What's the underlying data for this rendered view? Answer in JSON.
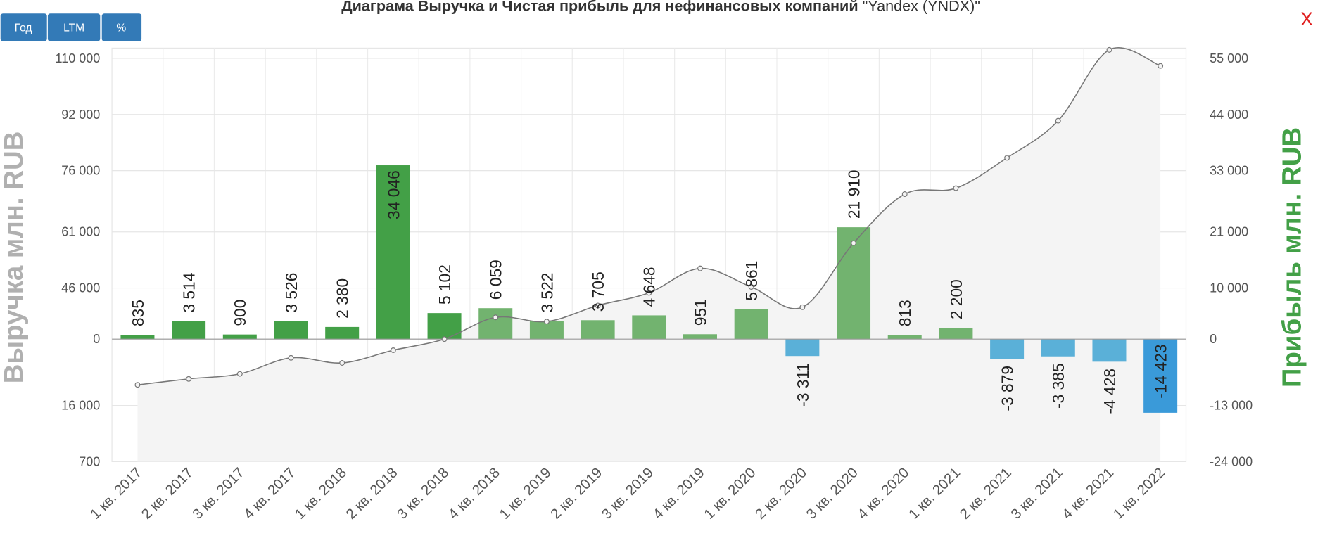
{
  "buttons": [
    "Год",
    "LTM",
    "%"
  ],
  "close": "X",
  "chart_data": {
    "type": "bar",
    "title": "Диаграма Выручка и Чистая прибыль для нефинансовых компаний",
    "title_company": "\"Yandex (YNDX)\"",
    "ylabel": "Выручка млн. RUB",
    "y2label": "Прибыль млн. RUB",
    "categories": [
      "1 кв. 2017",
      "2 кв. 2017",
      "3 кв. 2017",
      "4 кв. 2017",
      "1 кв. 2018",
      "2 кв. 2018",
      "3 кв. 2018",
      "4 кв. 2018",
      "1 кв. 2019",
      "2 кв. 2019",
      "3 кв. 2019",
      "4 кв. 2019",
      "1 кв. 2020",
      "2 кв. 2020",
      "3 кв. 2020",
      "4 кв. 2020",
      "1 кв. 2021",
      "2 кв. 2021",
      "3 кв. 2021",
      "4 кв. 2021",
      "1 кв. 2022"
    ],
    "yticks": [
      {
        "value": 110000,
        "label": "110 000"
      },
      {
        "value": 92000,
        "label": "92 000"
      },
      {
        "value": 76000,
        "label": "76 000"
      },
      {
        "value": 61000,
        "label": "61 000"
      },
      {
        "value": 46000,
        "label": "46 000"
      },
      0,
      {
        "value": 16000,
        "label": "16 000"
      },
      700
    ],
    "y2lim": [
      -24000,
      57000
    ],
    "y2ticks": [
      {
        "value": 55000,
        "label": "55 000"
      },
      {
        "value": 44000,
        "label": "44 000"
      },
      {
        "value": 33000,
        "label": "33 000"
      },
      {
        "value": 21000,
        "label": "21 000"
      },
      {
        "value": 10000,
        "label": "10 000"
      },
      0,
      {
        "value": -13000,
        "label": "-13 000"
      },
      {
        "value": -24000,
        "label": "-24 000"
      }
    ],
    "grid": true,
    "series": [
      {
        "type": "bar",
        "axis": "y2",
        "values": [
          835,
          3514,
          900,
          3526,
          2380,
          34046,
          5102,
          6059,
          3522,
          3705,
          4648,
          951,
          5861,
          -3311,
          21910,
          813,
          2200,
          -3879,
          -3385,
          -4428,
          -14423
        ],
        "value_labels": [
          "835",
          "3 514",
          "900",
          "3 526",
          "2 380",
          "34 046",
          "5 102",
          "6 059",
          "3 522",
          "3 705",
          "4 648",
          "951",
          "5 861",
          "-3 311",
          "21 910",
          "813",
          "2 200",
          "-3 879",
          "-3 385",
          "-4 428",
          "-14 423"
        ],
        "colors": [
          "#43a047",
          "#43a047",
          "#43a047",
          "#43a047",
          "#43a047",
          "#43a047",
          "#43a047",
          "#72b36f",
          "#72b36f",
          "#72b36f",
          "#72b36f",
          "#72b36f",
          "#72b36f",
          "#5ab0d8",
          "#72b36f",
          "#72b36f",
          "#72b36f",
          "#5ab0d8",
          "#5ab0d8",
          "#5ab0d8",
          "#3a9ad9"
        ]
      },
      {
        "type": "line",
        "axis": "y2",
        "color": "#777777",
        "values": [
          -8960,
          -7800,
          -6810,
          -3670,
          -4660,
          -2180,
          0,
          4260,
          3440,
          6580,
          9060,
          13850,
          10220,
          6250,
          18810,
          28400,
          29560,
          35510,
          42780,
          56660,
          53520
        ]
      }
    ]
  }
}
